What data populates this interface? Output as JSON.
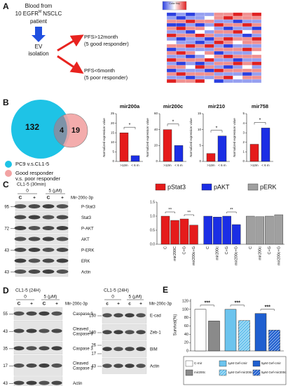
{
  "panel_a": {
    "label": "A",
    "blood_line1": "Blood from",
    "blood_line2a": "10 EGFR",
    "blood_sup": "M",
    "blood_line2b": "NSCLC",
    "blood_line3": "patient",
    "ev": [
      "EV",
      "isolation"
    ],
    "outcomes": [
      {
        "line1": "PFS>12month",
        "line2": "(5 good responder)"
      },
      {
        "line1": "PFS<6month",
        "line2": "(5 poor responder)"
      }
    ],
    "heatmap": {
      "key_title": "Color Key",
      "values": [
        [
          -2,
          -1,
          -2,
          -1,
          -1,
          1,
          1,
          2,
          1,
          2
        ],
        [
          -1,
          -2,
          -1,
          -1,
          0,
          1,
          2,
          1,
          1,
          1
        ],
        [
          1,
          1,
          2,
          1,
          1,
          -1,
          -1,
          -2,
          -1,
          -1
        ],
        [
          -2,
          -2,
          -1,
          -2,
          -1,
          2,
          1,
          1,
          2,
          1
        ],
        [
          1,
          2,
          1,
          1,
          0,
          -1,
          -2,
          -1,
          -1,
          -2
        ],
        [
          -1,
          -1,
          -2,
          0,
          -1,
          1,
          1,
          2,
          0,
          1
        ],
        [
          2,
          1,
          1,
          2,
          1,
          -1,
          -1,
          -1,
          -2,
          -1
        ],
        [
          -1,
          -2,
          -1,
          -1,
          -2,
          1,
          2,
          1,
          1,
          2
        ],
        [
          0,
          -1,
          -1,
          -2,
          -1,
          2,
          1,
          0,
          1,
          1
        ],
        [
          1,
          1,
          2,
          1,
          2,
          -1,
          -2,
          -1,
          -1,
          -1
        ],
        [
          -2,
          -1,
          -1,
          -1,
          -1,
          1,
          1,
          1,
          2,
          1
        ],
        [
          1,
          2,
          1,
          0,
          1,
          -2,
          -1,
          -1,
          -1,
          0
        ],
        [
          -1,
          -1,
          -2,
          -1,
          0,
          1,
          2,
          1,
          1,
          1
        ],
        [
          2,
          1,
          1,
          1,
          2,
          -1,
          -1,
          -2,
          -1,
          -1
        ],
        [
          -1,
          -2,
          -1,
          -2,
          -1,
          1,
          1,
          2,
          1,
          2
        ],
        [
          1,
          1,
          0,
          2,
          1,
          -1,
          -2,
          -1,
          0,
          -1
        ],
        [
          -2,
          -1,
          -1,
          -1,
          -2,
          2,
          1,
          1,
          1,
          1
        ],
        [
          1,
          2,
          1,
          1,
          1,
          -1,
          -1,
          -1,
          -2,
          -1
        ],
        [
          -1,
          -1,
          -2,
          -1,
          -1,
          1,
          2,
          0,
          1,
          1
        ],
        [
          2,
          1,
          1,
          2,
          0,
          -2,
          -1,
          -1,
          -1,
          -1
        ]
      ]
    }
  },
  "panel_b": {
    "label": "B",
    "venn": {
      "left_only": "132",
      "overlap": "4",
      "right_only": "19"
    },
    "legend": [
      {
        "lines": [
          "PC9 v.s.CL1-5"
        ],
        "color": "#1ec3e6"
      },
      {
        "lines": [
          "Good responder",
          "v.s. poor responder"
        ],
        "color": "#f2a3a3"
      }
    ],
    "charts": [
      {
        "title": "mir200a",
        "ylabel": "Normalized expression value",
        "categories": [
          ">12m",
          "< 6 m"
        ],
        "values": [
          15,
          3
        ],
        "colors": [
          "#e51b1b",
          "#1b2ee5"
        ],
        "ylim": [
          0,
          25
        ],
        "yticks": [
          0,
          5,
          10,
          15,
          20,
          25
        ],
        "sig": "*"
      },
      {
        "title": "mir200c",
        "ylabel": "Normalized expression value",
        "categories": [
          ">12m",
          "< 6 m"
        ],
        "values": [
          40,
          20
        ],
        "colors": [
          "#e51b1b",
          "#1b2ee5"
        ],
        "ylim": [
          0,
          60
        ],
        "yticks": [
          0,
          20,
          40,
          60
        ],
        "sig": "*"
      },
      {
        "title": "mir210",
        "ylabel": "Normalized expression value",
        "categories": [
          ">12m",
          "< 6 m"
        ],
        "values": [
          2.5,
          8
        ],
        "colors": [
          "#e51b1b",
          "#1b2ee5"
        ],
        "ylim": [
          0,
          15
        ],
        "yticks": [
          0,
          5,
          10,
          15
        ],
        "sig": "*"
      },
      {
        "title": "mir758",
        "ylabel": "Normalized expression value",
        "categories": [
          ">12m",
          "< 6 m"
        ],
        "values": [
          1.8,
          3.5
        ],
        "colors": [
          "#e51b1b",
          "#1b2ee5"
        ],
        "ylim": [
          0,
          5
        ],
        "yticks": [
          0,
          1,
          2,
          3,
          4,
          5
        ],
        "sig": "*"
      }
    ]
  },
  "panel_c": {
    "label": "C",
    "blot": {
      "condition": "CL1-5 (30min)",
      "doses": [
        "0",
        "5 (μM)"
      ],
      "treatment": "Mir-200c-3p",
      "lanes": [
        "C",
        "+",
        "C",
        "+"
      ],
      "rows": [
        {
          "name": "P-Stat3",
          "markers": [
            "95"
          ]
        },
        {
          "name": "Stat3",
          "markers": []
        },
        {
          "name": "P-AKT",
          "markers": [
            "72"
          ]
        },
        {
          "name": "AKT",
          "markers": []
        },
        {
          "name": "P-ERK",
          "markers": [
            "43"
          ]
        },
        {
          "name": "ERK",
          "markers": []
        },
        {
          "name": "Actin",
          "markers": [
            "43"
          ]
        }
      ]
    },
    "chart": {
      "ylim": [
        0,
        1.5
      ],
      "yticks": [
        {
          "value": 0,
          "label": "0.0"
        },
        {
          "value": 0.5,
          "label": "0.5"
        },
        {
          "value": 1,
          "label": "1.0"
        },
        {
          "value": 1.5,
          "label": "1.5"
        }
      ],
      "series": [
        {
          "name": "pStat3",
          "color": "#e51b1b",
          "categories": [
            "C",
            "mir200C",
            "C+G",
            "mir200c+G"
          ],
          "values": [
            1.0,
            0.85,
            0.9,
            0.68
          ],
          "sig": [
            "**",
            "**"
          ]
        },
        {
          "name": "pAKT",
          "color": "#1b2ee5",
          "categories": [
            "C",
            "mir200c",
            "C+G",
            "mir200c+G"
          ],
          "values": [
            1.0,
            0.97,
            1.0,
            0.7
          ],
          "sig": [
            "**"
          ]
        },
        {
          "name": "pERK",
          "color": "#a0a0a0",
          "categories": [
            "C",
            "mir200c",
            "C+G",
            "mir200c+G"
          ],
          "values": [
            1.0,
            0.98,
            1.0,
            1.05
          ],
          "sig": []
        }
      ]
    }
  },
  "panel_d": {
    "label": "D",
    "blots": [
      {
        "condition": "CL1-5 (24H)",
        "doses": [
          "0",
          "5 (μM)"
        ],
        "treatment": "Mir-200c-3p",
        "lanes": [
          "C",
          "+",
          "C",
          "+"
        ],
        "rows": [
          {
            "name": [
              "Caspase 9"
            ],
            "markers": [
              "55"
            ]
          },
          {
            "name": [
              "Cleaved",
              "Caspase 9"
            ],
            "markers": [
              "43"
            ]
          },
          {
            "name": [
              "Caspase 3"
            ],
            "markers": [
              "35"
            ]
          },
          {
            "name": [
              "Cleaved",
              "Caspase 3"
            ],
            "markers": [
              "17"
            ]
          },
          {
            "name": [
              "Actin"
            ],
            "markers": [
              "43"
            ]
          }
        ]
      },
      {
        "condition": "CL1-5 (24H)",
        "doses": [
          "0",
          "5 (μM)"
        ],
        "treatment": "Mir-200c-3p",
        "lanes": [
          "c",
          "+",
          "c",
          "+"
        ],
        "rows": [
          {
            "name": [
              "E-cad"
            ],
            "markers": [
              "130"
            ]
          },
          {
            "name": [
              "Zeb-1"
            ],
            "markers": [
              "180"
            ]
          },
          {
            "name": [
              "BIM"
            ],
            "markers": [
              "26",
              "17"
            ]
          },
          {
            "name": [
              "Actin"
            ],
            "markers": [
              "43"
            ]
          }
        ]
      }
    ]
  },
  "panel_e": {
    "label": "E",
    "ylabel": "Survival(%)",
    "ylim": [
      0,
      125
    ],
    "yticks": [
      0,
      20,
      40,
      60,
      80,
      100,
      120
    ],
    "sig": [
      "***",
      "***",
      "***"
    ],
    "series": [
      {
        "name": "C-mir",
        "color": "#ffffff",
        "hatched": false,
        "value": 100
      },
      {
        "name": "mir200c",
        "color": "#8a8a8a",
        "hatched": false,
        "value": 72
      },
      {
        "name": "1μM Gef-cmir",
        "color": "#6cc4ee",
        "hatched": false,
        "value": 100
      },
      {
        "name": "1μM Gef-mir200c",
        "color": "#6cc4ee",
        "hatched": true,
        "value": 73
      },
      {
        "name": "5μM Gef-cmir",
        "color": "#1f5fd0",
        "hatched": false,
        "value": 90
      },
      {
        "name": "5μM Gef-mir200c",
        "color": "#1f5fd0",
        "hatched": true,
        "value": 50
      }
    ]
  }
}
